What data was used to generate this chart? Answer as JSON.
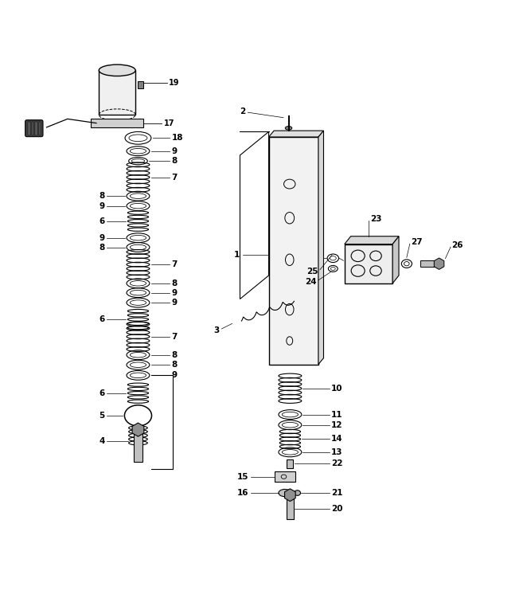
{
  "bg_color": "#ffffff",
  "line_color": "#000000",
  "fig_width": 6.62,
  "fig_height": 7.51,
  "dpi": 100
}
